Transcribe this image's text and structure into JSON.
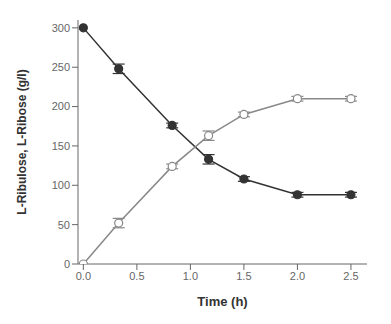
{
  "chart_data": {
    "type": "line",
    "xlabel": "Time (h)",
    "ylabel": "L-Ribulose, L-Ribose (g/l)",
    "xlim": [
      -0.05,
      2.65
    ],
    "ylim": [
      0,
      310
    ],
    "xticks": [
      {
        "value": 0,
        "label": "0.0"
      },
      0.5,
      {
        "value": 1,
        "label": "1.0"
      },
      1.5,
      {
        "value": 2,
        "label": "2.0"
      },
      2.5
    ],
    "yticks": [
      0,
      50,
      100,
      150,
      200,
      250,
      300
    ],
    "grid": false,
    "x": [
      0.0,
      0.33,
      0.83,
      1.17,
      1.5,
      2.0,
      2.5
    ],
    "series": [
      {
        "color": "#333333",
        "marker": "filled_circle",
        "values": [
          300,
          248,
          176,
          133,
          108,
          88,
          88
        ],
        "errors": [
          0,
          6,
          3,
          6,
          3,
          3,
          3
        ]
      },
      {
        "color": "#888888",
        "marker": "open_circle",
        "values": [
          0,
          52,
          124,
          163,
          190,
          210,
          210
        ],
        "errors": [
          0,
          6,
          3,
          6,
          3,
          3,
          3
        ]
      }
    ]
  }
}
